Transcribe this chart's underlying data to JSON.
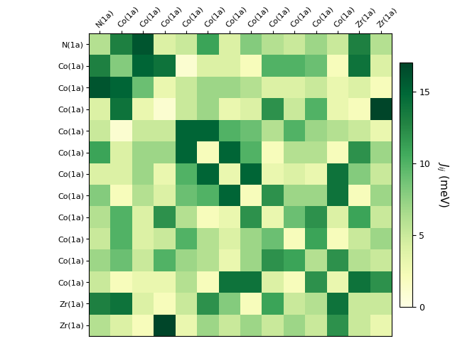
{
  "labels": [
    "N(1a)",
    "Co(1a)",
    "Co(1a)",
    "Co(1a)",
    "Co(1a)",
    "Co(1a)",
    "Co(1a)",
    "Co(1a)",
    "Co(1a)",
    "Co(1a)",
    "Co(1a)",
    "Co(1a)",
    "Zr(1a)",
    "Zr(1a)"
  ],
  "matrix": [
    [
      6,
      13,
      16,
      4,
      5,
      11,
      4,
      8,
      6,
      5,
      7,
      5,
      13,
      6
    ],
    [
      13,
      8,
      15,
      14,
      1,
      4,
      4,
      2,
      10,
      10,
      9,
      2,
      14,
      4
    ],
    [
      16,
      15,
      9,
      3,
      5,
      7,
      7,
      6,
      4,
      4,
      5,
      3,
      4,
      2
    ],
    [
      4,
      14,
      3,
      1,
      5,
      7,
      3,
      4,
      12,
      5,
      10,
      3,
      2,
      17
    ],
    [
      5,
      1,
      5,
      5,
      15,
      15,
      10,
      9,
      6,
      10,
      7,
      6,
      5,
      3
    ],
    [
      11,
      4,
      7,
      7,
      15,
      2,
      15,
      10,
      2,
      6,
      6,
      2,
      12,
      7
    ],
    [
      4,
      4,
      7,
      3,
      10,
      15,
      3,
      15,
      3,
      4,
      3,
      14,
      8,
      5
    ],
    [
      8,
      2,
      6,
      4,
      9,
      10,
      15,
      2,
      12,
      7,
      7,
      14,
      2,
      7
    ],
    [
      6,
      10,
      4,
      12,
      6,
      2,
      3,
      12,
      3,
      9,
      12,
      4,
      11,
      5
    ],
    [
      5,
      10,
      4,
      5,
      10,
      6,
      4,
      7,
      9,
      2,
      11,
      2,
      5,
      7
    ],
    [
      7,
      9,
      5,
      10,
      7,
      6,
      3,
      7,
      12,
      11,
      6,
      12,
      6,
      5
    ],
    [
      5,
      2,
      3,
      3,
      6,
      2,
      14,
      14,
      4,
      2,
      12,
      3,
      14,
      12
    ],
    [
      13,
      14,
      4,
      2,
      5,
      12,
      8,
      2,
      11,
      5,
      6,
      14,
      5,
      5
    ],
    [
      6,
      4,
      2,
      17,
      3,
      7,
      5,
      7,
      5,
      7,
      5,
      12,
      5,
      3
    ]
  ],
  "vmin": 0,
  "vmax": 17,
  "cmap": "YlGn",
  "colorbar_label": "$J_{ij}$ (meV)",
  "colorbar_ticks": [
    0,
    5,
    10,
    15
  ],
  "figsize": [
    6.4,
    4.8
  ],
  "dpi": 100
}
